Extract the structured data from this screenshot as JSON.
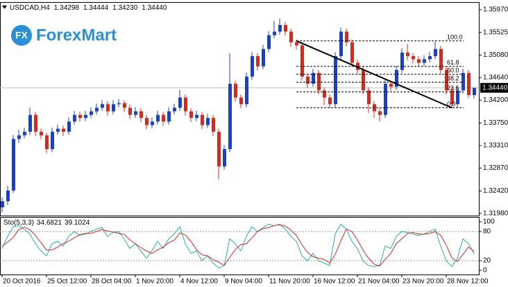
{
  "logo": {
    "icon": "FX",
    "name": "ForexMart"
  },
  "chart_data": [
    {
      "type": "candlestick",
      "symbol": "USDCAD,H4",
      "last_quote": [
        "1.34298",
        "1.34444",
        "1.34230",
        "1.34440"
      ],
      "up_color": "#1a3fd6",
      "down_color": "#e0251b",
      "categories": [
        "20 Oct 2016",
        null,
        null,
        null,
        null,
        null,
        null,
        null,
        "25 Oct 12:00",
        null,
        null,
        null,
        null,
        null,
        null,
        null,
        "28 Oct 04:00",
        null,
        null,
        null,
        null,
        null,
        null,
        null,
        "1 Nov 20:00",
        null,
        null,
        null,
        null,
        null,
        null,
        null,
        "4 Nov 12:00",
        null,
        null,
        null,
        null,
        null,
        null,
        null,
        "9 Nov 04:00",
        null,
        null,
        null,
        null,
        null,
        null,
        null,
        "11 Nov 20:00",
        null,
        null,
        null,
        null,
        null,
        null,
        null,
        "16 Nov 12:00",
        null,
        null,
        null,
        null,
        null,
        null,
        null,
        "21 Nov 04:00",
        null,
        null,
        null,
        null,
        null,
        null,
        null,
        "23 Nov 20:00",
        null,
        null,
        null,
        null,
        null,
        null,
        null,
        "28 Nov 12:00",
        null,
        null,
        null,
        null,
        null
      ],
      "ohlc": [
        [
          1.321,
          1.323,
          1.32,
          1.3222
        ],
        [
          1.3222,
          1.3252,
          1.3215,
          1.3243
        ],
        [
          1.3243,
          1.3352,
          1.3238,
          1.3344
        ],
        [
          1.3344,
          1.3362,
          1.3336,
          1.3351
        ],
        [
          1.3351,
          1.3366,
          1.3345,
          1.3358
        ],
        [
          1.3358,
          1.3405,
          1.3352,
          1.3391
        ],
        [
          1.3391,
          1.3397,
          1.335,
          1.3358
        ],
        [
          1.3358,
          1.3364,
          1.3343,
          1.3351
        ],
        [
          1.3351,
          1.3356,
          1.3316,
          1.3324
        ],
        [
          1.3324,
          1.3366,
          1.3318,
          1.3358
        ],
        [
          1.3358,
          1.3372,
          1.3352,
          1.3364
        ],
        [
          1.3364,
          1.337,
          1.335,
          1.3358
        ],
        [
          1.3358,
          1.3386,
          1.3352,
          1.3378
        ],
        [
          1.3378,
          1.3399,
          1.3372,
          1.3391
        ],
        [
          1.3391,
          1.3397,
          1.3377,
          1.3385
        ],
        [
          1.3385,
          1.3399,
          1.3379,
          1.3391
        ],
        [
          1.3391,
          1.3406,
          1.3385,
          1.3398
        ],
        [
          1.3398,
          1.3413,
          1.3392,
          1.3405
        ],
        [
          1.3405,
          1.342,
          1.3399,
          1.3412
        ],
        [
          1.3412,
          1.3418,
          1.339,
          1.3398
        ],
        [
          1.3398,
          1.342,
          1.3392,
          1.3412
        ],
        [
          1.3412,
          1.3422,
          1.3406,
          1.3414
        ],
        [
          1.3414,
          1.342,
          1.3397,
          1.3405
        ],
        [
          1.3405,
          1.3411,
          1.3383,
          1.3391
        ],
        [
          1.3391,
          1.3406,
          1.3385,
          1.3398
        ],
        [
          1.3398,
          1.3404,
          1.3377,
          1.3385
        ],
        [
          1.3385,
          1.3391,
          1.3363,
          1.3371
        ],
        [
          1.3371,
          1.3386,
          1.3365,
          1.3378
        ],
        [
          1.3378,
          1.3399,
          1.3372,
          1.3391
        ],
        [
          1.3391,
          1.3397,
          1.337,
          1.3378
        ],
        [
          1.3378,
          1.3406,
          1.3372,
          1.3398
        ],
        [
          1.3398,
          1.3413,
          1.3392,
          1.3405
        ],
        [
          1.3405,
          1.344,
          1.3399,
          1.3425
        ],
        [
          1.3425,
          1.3431,
          1.339,
          1.3398
        ],
        [
          1.3398,
          1.3404,
          1.3377,
          1.3385
        ],
        [
          1.3385,
          1.3399,
          1.3379,
          1.3391
        ],
        [
          1.3391,
          1.3397,
          1.3363,
          1.3371
        ],
        [
          1.3371,
          1.3393,
          1.3365,
          1.3385
        ],
        [
          1.3385,
          1.3391,
          1.335,
          1.3358
        ],
        [
          1.3358,
          1.3364,
          1.3265,
          1.329
        ],
        [
          1.329,
          1.3332,
          1.3284,
          1.3324
        ],
        [
          1.3324,
          1.3512,
          1.3318,
          1.3452
        ],
        [
          1.3452,
          1.3458,
          1.3417,
          1.3425
        ],
        [
          1.3425,
          1.3431,
          1.3404,
          1.3412
        ],
        [
          1.3412,
          1.3474,
          1.3406,
          1.3466
        ],
        [
          1.3466,
          1.3514,
          1.346,
          1.3506
        ],
        [
          1.3506,
          1.3512,
          1.3478,
          1.3486
        ],
        [
          1.3486,
          1.3528,
          1.348,
          1.352
        ],
        [
          1.352,
          1.3555,
          1.3514,
          1.3547
        ],
        [
          1.3547,
          1.3575,
          1.3541,
          1.3554
        ],
        [
          1.3554,
          1.358,
          1.3548,
          1.3567
        ],
        [
          1.3567,
          1.3573,
          1.3546,
          1.3554
        ],
        [
          1.3554,
          1.356,
          1.3525,
          1.3533
        ],
        [
          1.3533,
          1.3539,
          1.3519,
          1.3527
        ],
        [
          1.3527,
          1.3533,
          1.3458,
          1.3466
        ],
        [
          1.3466,
          1.3472,
          1.3444,
          1.3452
        ],
        [
          1.3452,
          1.3481,
          1.3446,
          1.3473
        ],
        [
          1.3473,
          1.3479,
          1.3431,
          1.3439
        ],
        [
          1.3439,
          1.3445,
          1.341,
          1.3425
        ],
        [
          1.3425,
          1.3431,
          1.3404,
          1.3412
        ],
        [
          1.3412,
          1.3514,
          1.3406,
          1.3506
        ],
        [
          1.3506,
          1.3562,
          1.35,
          1.3554
        ],
        [
          1.3554,
          1.356,
          1.3525,
          1.3533
        ],
        [
          1.3533,
          1.3539,
          1.3485,
          1.3493
        ],
        [
          1.3493,
          1.3499,
          1.3471,
          1.3479
        ],
        [
          1.3479,
          1.3485,
          1.3431,
          1.3439
        ],
        [
          1.3439,
          1.3445,
          1.3395,
          1.3412
        ],
        [
          1.3412,
          1.3418,
          1.3385,
          1.3398
        ],
        [
          1.3398,
          1.3404,
          1.3378,
          1.3391
        ],
        [
          1.3391,
          1.346,
          1.3385,
          1.3452
        ],
        [
          1.3452,
          1.3458,
          1.3438,
          1.3446
        ],
        [
          1.3446,
          1.3487,
          1.344,
          1.3479
        ],
        [
          1.3479,
          1.3521,
          1.3473,
          1.3513
        ],
        [
          1.3513,
          1.353,
          1.3498,
          1.3506
        ],
        [
          1.3506,
          1.3512,
          1.3492,
          1.35
        ],
        [
          1.35,
          1.3506,
          1.3485,
          1.3493
        ],
        [
          1.3493,
          1.3508,
          1.3487,
          1.35
        ],
        [
          1.35,
          1.3514,
          1.3494,
          1.3506
        ],
        [
          1.3506,
          1.3535,
          1.35,
          1.352
        ],
        [
          1.352,
          1.3526,
          1.3471,
          1.3479
        ],
        [
          1.3479,
          1.3485,
          1.3431,
          1.3439
        ],
        [
          1.3439,
          1.3445,
          1.3404,
          1.3412
        ],
        [
          1.3412,
          1.3447,
          1.3406,
          1.3439
        ],
        [
          1.3439,
          1.3481,
          1.3433,
          1.3473
        ],
        [
          1.3473,
          1.3479,
          1.3424,
          1.343
        ],
        [
          1.34298,
          1.34444,
          1.3423,
          1.3444
        ]
      ],
      "ylim": [
        1.31939,
        1.36105
      ],
      "yticks": [
        {
          "value": 1.3597,
          "label": "1.35970"
        },
        1.35525,
        {
          "value": 1.3508,
          "label": "1.35080"
        },
        {
          "value": 1.3464,
          "label": "1.34640"
        },
        {
          "value": 1.342,
          "label": "1.34200"
        },
        {
          "value": 1.3375,
          "label": "1.33750"
        },
        {
          "value": 1.3331,
          "label": "1.33310"
        },
        {
          "value": 1.3287,
          "label": "1.32870"
        },
        {
          "value": 1.3242,
          "label": "1.32420"
        },
        {
          "value": 1.3198,
          "label": "1.31980"
        }
      ],
      "fibonacci": {
        "high": 1.3536,
        "low": 1.3405,
        "levels": [
          {
            "value": 100,
            "label": "100.0"
          },
          61.8,
          {
            "value": 50,
            "label": "50.0"
          },
          38.2,
          23.6,
          {
            "value": 0,
            "label": "0.0"
          }
        ]
      }
    },
    {
      "type": "line",
      "label": "Sto(5,3,3)",
      "ylim": [
        -8.5,
        108.5
      ],
      "yticks": [
        100,
        80,
        20,
        0
      ],
      "series": [
        {
          "color": "#20b2aa",
          "values": [
            45,
            70,
            90,
            92,
            85,
            75,
            55,
            40,
            30,
            55,
            60,
            50,
            70,
            80,
            72,
            75,
            80,
            85,
            88,
            70,
            78,
            80,
            65,
            45,
            55,
            40,
            25,
            40,
            60,
            45,
            65,
            75,
            90,
            55,
            35,
            40,
            20,
            30,
            15,
            5,
            10,
            65,
            55,
            40,
            70,
            90,
            80,
            88,
            95,
            92,
            95,
            85,
            70,
            60,
            30,
            20,
            35,
            20,
            15,
            10,
            75,
            95,
            85,
            60,
            45,
            20,
            10,
            8,
            10,
            50,
            45,
            70,
            80,
            78,
            75,
            72,
            75,
            80,
            85,
            50,
            20,
            8,
            25,
            65,
            55,
            34.6821
          ]
        },
        {
          "color": "#e0251b",
          "values": [
            50,
            58,
            68,
            84,
            89,
            84,
            72,
            57,
            42,
            42,
            48,
            55,
            60,
            67,
            74,
            76,
            76,
            80,
            84,
            81,
            79,
            76,
            74,
            63,
            55,
            47,
            40,
            35,
            42,
            48,
            57,
            62,
            77,
            73,
            60,
            43,
            32,
            30,
            22,
            17,
            10,
            27,
            43,
            53,
            55,
            67,
            80,
            86,
            88,
            92,
            94,
            91,
            83,
            72,
            53,
            37,
            28,
            25,
            23,
            15,
            33,
            60,
            85,
            80,
            63,
            42,
            25,
            13,
            9,
            23,
            35,
            55,
            65,
            76,
            78,
            75,
            74,
            76,
            80,
            72,
            52,
            26,
            18,
            33,
            48,
            39.1024
          ]
        }
      ]
    }
  ]
}
